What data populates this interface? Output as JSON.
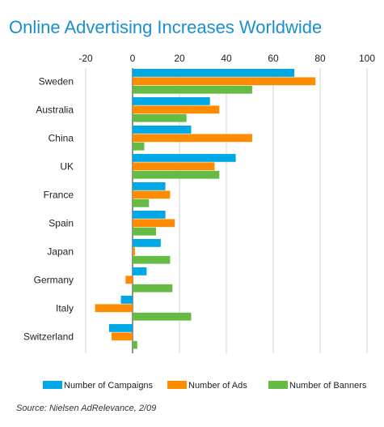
{
  "chart_data": {
    "type": "bar",
    "orientation": "horizontal",
    "title": "Online Advertising Increases Worldwide",
    "categories": [
      "Sweden",
      "Australia",
      "China",
      "UK",
      "France",
      "Spain",
      "Japan",
      "Germany",
      "Italy",
      "Switzerland"
    ],
    "series": [
      {
        "name": "Number of Campaigns",
        "color": "#00a9e6",
        "values": [
          69,
          33,
          25,
          44,
          14,
          14,
          12,
          6,
          -5,
          -10
        ]
      },
      {
        "name": "Number of Ads",
        "color": "#ff8c00",
        "values": [
          78,
          37,
          51,
          35,
          16,
          18,
          1,
          -3,
          -16,
          -9
        ]
      },
      {
        "name": "Number of Banners",
        "color": "#66bb44",
        "values": [
          51,
          23,
          5,
          37,
          7,
          10,
          16,
          17,
          25,
          2
        ]
      }
    ],
    "xlim": [
      -20,
      100
    ],
    "xticks": [
      -20,
      0,
      20,
      40,
      60,
      80,
      100
    ],
    "xlabel": "",
    "ylabel": "",
    "legend": "bottom",
    "grid": true
  },
  "colors": {
    "title": "#1a8fd1",
    "grid": "#c8c8c8",
    "axis": "#222222",
    "text": "#222222"
  },
  "source": "Source: Nielsen AdRelevance, 2/09"
}
